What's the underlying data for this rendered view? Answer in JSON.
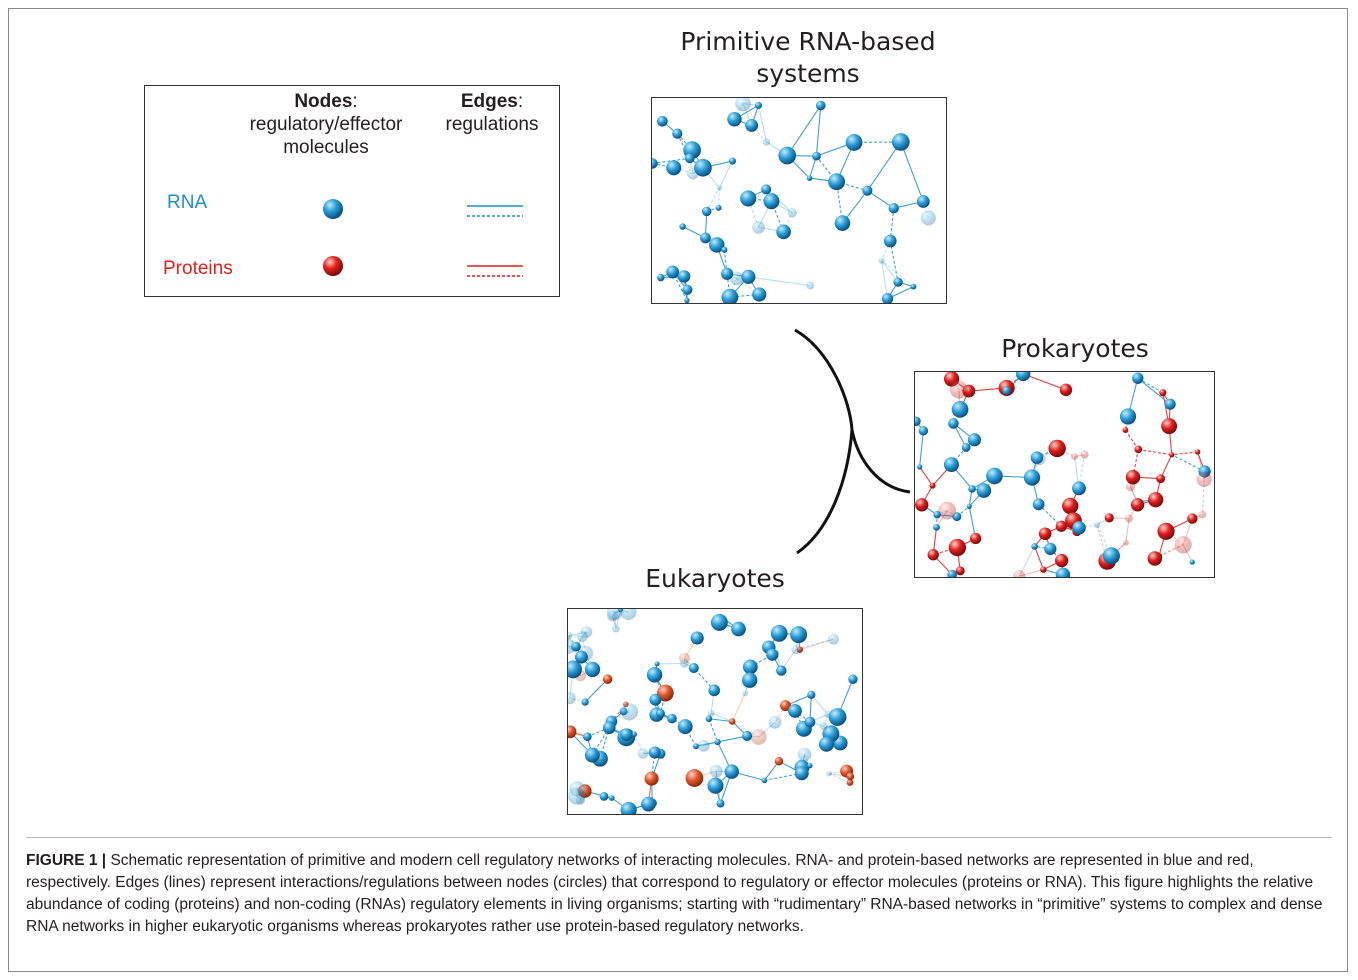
{
  "legend": {
    "nodes_heading": "Nodes",
    "nodes_colon": ":",
    "nodes_sub_1": "regulatory/effector",
    "nodes_sub_2": "molecules",
    "edges_heading": "Edges",
    "edges_colon": ":",
    "edges_sub": "regulations",
    "rna_label": "RNA",
    "proteins_label": "Proteins"
  },
  "panels": {
    "primitive_title_1": "Primitive RNA-based",
    "primitive_title_2": "systems",
    "prokaryotes_title": "Prokaryotes",
    "eukaryotes_title": "Eukaryotes"
  },
  "caption": {
    "label": "FIGURE 1 |",
    "text": " Schematic representation of primitive and modern cell regulatory networks of interacting molecules. RNA- and protein-based networks are represented in blue and red, respectively. Edges (lines) represent interactions/regulations between nodes (circles) that correspond to regulatory or effector molecules (proteins or RNA). This figure highlights the relative abundance of coding (proteins) and non-coding (RNAs) regulatory elements in living organisms; starting with “rudimentary” RNA-based networks in “primitive” systems to complex and dense RNA networks in higher eukaryotic organisms whereas prokaryotes rather use protein-based regulatory networks."
  },
  "colors": {
    "rna": "#1e90c8",
    "protein": "#e01e1e",
    "eukaryote_protein": "#e0552a"
  }
}
